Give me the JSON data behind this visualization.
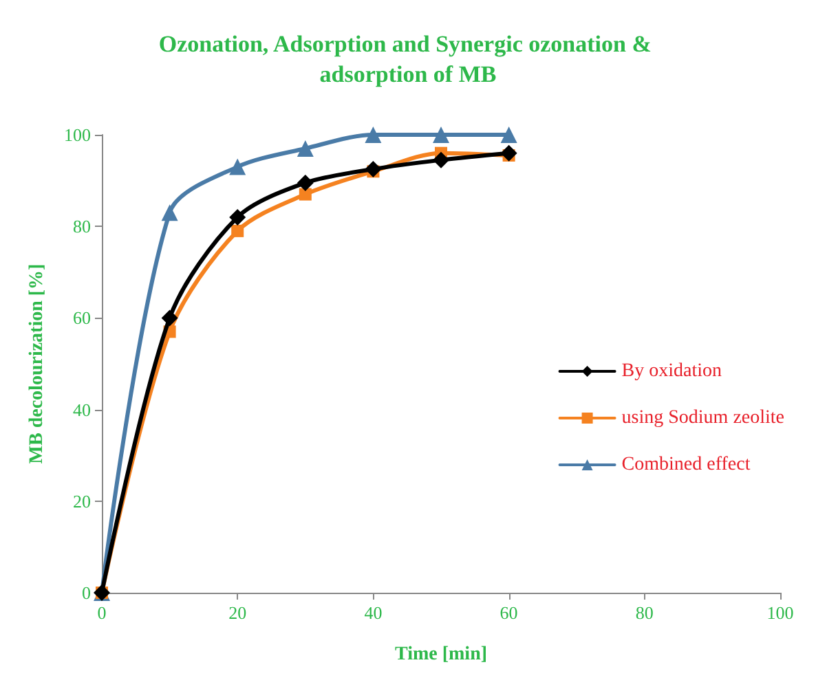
{
  "chart_data": {
    "type": "line",
    "title": "Ozonation, Adsorption and Synergic ozonation & adsorption of MB",
    "xlabel": "Time [min]",
    "ylabel": "MB decolourization [%]",
    "x": [
      0,
      10,
      20,
      30,
      40,
      50,
      60
    ],
    "series": [
      {
        "name": "By oxidation",
        "color": "#000000",
        "marker": "diamond",
        "values": [
          0,
          60,
          82,
          89.5,
          92.5,
          94.5,
          96
        ]
      },
      {
        "name": "using Sodium zeolite",
        "color": "#f58220",
        "marker": "square",
        "values": [
          0,
          57,
          79,
          87,
          92,
          96,
          95.5
        ]
      },
      {
        "name": "Combined effect",
        "color": "#4a7ba7",
        "marker": "triangle",
        "values": [
          0,
          83,
          93,
          97,
          100,
          100,
          100
        ]
      }
    ],
    "xlim": [
      0,
      100
    ],
    "xticks": [
      0,
      20,
      40,
      60,
      80,
      100
    ],
    "ylim": [
      0,
      100
    ],
    "yticks": [
      0,
      20,
      40,
      60,
      80,
      100
    ],
    "grid": false,
    "legend": "right"
  }
}
